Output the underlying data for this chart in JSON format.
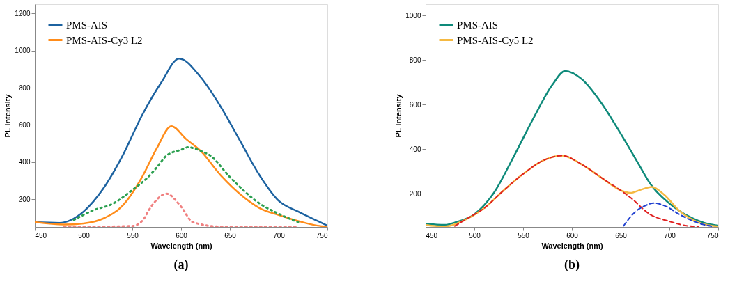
{
  "chart_data": [
    {
      "type": "line",
      "title": "(a)",
      "xlabel": "Wavelength (nm)",
      "ylabel": "PL Intensity",
      "xlim": [
        450,
        750
      ],
      "xticks": [
        450,
        500,
        550,
        600,
        650,
        700,
        750
      ],
      "ylim": [
        50,
        1250
      ],
      "yticks": [
        200,
        400,
        600,
        800,
        1000,
        1200
      ],
      "grid": false,
      "legend": "top left",
      "series": [
        {
          "name": "PMS-AIS",
          "color": "#1c62a0",
          "line_style": "solid",
          "x": [
            450,
            475,
            500,
            520,
            540,
            560,
            580,
            598,
            620,
            640,
            660,
            680,
            700,
            720,
            740,
            750
          ],
          "values": [
            76,
            72,
            133,
            255,
            434,
            652,
            831,
            957,
            857,
            703,
            518,
            332,
            191,
            133,
            82,
            57
          ]
        },
        {
          "name": "PMS-AIS-Cy3 L2",
          "color": "#ff8c1a",
          "line_style": "solid",
          "x": [
            450,
            480,
            500,
            520,
            540,
            560,
            575,
            590,
            605,
            620,
            640,
            660,
            680,
            700,
            720,
            740,
            750
          ],
          "values": [
            76,
            63,
            69,
            95,
            165,
            319,
            473,
            593,
            524,
            460,
            332,
            229,
            153,
            114,
            82,
            57,
            52
          ]
        },
        {
          "color": "#2ca050",
          "line_style": "dotted",
          "x": [
            490,
            510,
            530,
            550,
            565,
            575,
            585,
            600,
            607,
            620,
            630,
            650,
            680,
            700,
            720
          ],
          "values": [
            88,
            140,
            175,
            249,
            313,
            370,
            434,
            466,
            479,
            460,
            434,
            319,
            178,
            121,
            76
          ]
        },
        {
          "color": "#f08080",
          "line_style": "dotted",
          "x": [
            480,
            520,
            550,
            560,
            570,
            585,
            600,
            612,
            640,
            680,
            720
          ],
          "values": [
            52,
            52,
            55,
            82,
            165,
            229,
            159,
            76,
            52,
            52,
            52
          ]
        }
      ]
    },
    {
      "type": "line",
      "title": "(b)",
      "xlabel": "Wavelength (nm)",
      "ylabel": "PL Intensity",
      "xlim": [
        450,
        750
      ],
      "xticks": [
        450,
        500,
        550,
        600,
        650,
        700,
        750
      ],
      "ylim": [
        50,
        1050
      ],
      "yticks": [
        200,
        400,
        600,
        800,
        1000
      ],
      "grid": false,
      "legend": "top left",
      "series": [
        {
          "name": "PMS-AIS",
          "color": "#0e8a7a",
          "line_style": "solid",
          "x": [
            450,
            470,
            480,
            500,
            520,
            540,
            560,
            580,
            593,
            610,
            630,
            650,
            670,
            680,
            700,
            720,
            740,
            750
          ],
          "values": [
            65,
            59,
            70,
            107,
            203,
            363,
            533,
            688,
            750,
            714,
            608,
            469,
            320,
            246,
            155,
            97,
            63,
            56
          ]
        },
        {
          "name": "PMS-AIS-Cy5 L2",
          "color": "#f5b942",
          "line_style": "solid",
          "x": [
            450,
            470,
            490,
            510,
            530,
            550,
            570,
            590,
            610,
            630,
            650,
            660,
            670,
            682,
            695,
            710,
            730,
            750
          ],
          "values": [
            59,
            52,
            81,
            134,
            214,
            288,
            347,
            370,
            331,
            272,
            214,
            203,
            216,
            230,
            193,
            123,
            70,
            52
          ]
        },
        {
          "color": "#e02020",
          "line_style": "dashed",
          "x": [
            480,
            490,
            510,
            530,
            550,
            570,
            590,
            610,
            630,
            650,
            660,
            680,
            700,
            720,
            730
          ],
          "values": [
            54,
            81,
            134,
            214,
            288,
            347,
            370,
            331,
            272,
            214,
            182,
            107,
            75,
            54,
            52
          ]
        },
        {
          "color": "#2040d0",
          "line_style": "dashed",
          "x": [
            653,
            665,
            675,
            684,
            695,
            710,
            730,
            745
          ],
          "values": [
            55,
            118,
            145,
            157,
            145,
            107,
            67,
            52
          ]
        }
      ]
    }
  ]
}
